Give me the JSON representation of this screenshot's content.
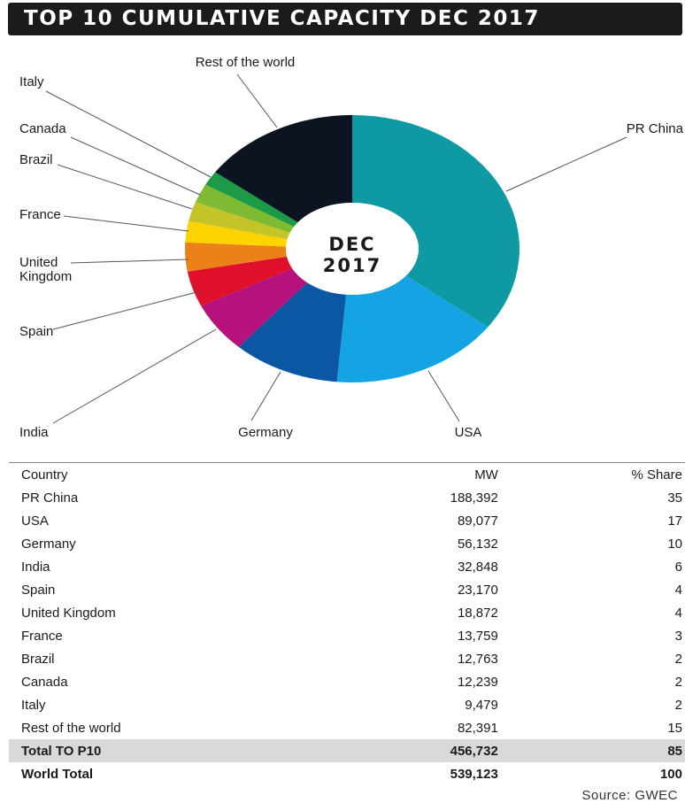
{
  "title": "TOP 10 CUMULATIVE CAPACITY DEC 2017",
  "center_label": [
    "DEC",
    "2017"
  ],
  "chart_data": {
    "type": "pie",
    "title": "TOP 10 CUMULATIVE CAPACITY DEC 2017",
    "unit": "MW",
    "slices": [
      {
        "label": "PR China",
        "value": 188392,
        "share": 35,
        "color": "#0f9aa3"
      },
      {
        "label": "USA",
        "value": 89077,
        "share": 17,
        "color": "#14a4e4"
      },
      {
        "label": "Germany",
        "value": 56132,
        "share": 10,
        "color": "#0b57a3"
      },
      {
        "label": "India",
        "value": 32848,
        "share": 6,
        "color": "#b5127e"
      },
      {
        "label": "Spain",
        "value": 23170,
        "share": 4,
        "color": "#e0102b"
      },
      {
        "label": "United Kingdom",
        "value": 18872,
        "share": 4,
        "color": "#ec8019"
      },
      {
        "label": "France",
        "value": 13759,
        "share": 3,
        "color": "#fdd400"
      },
      {
        "label": "Brazil",
        "value": 12763,
        "share": 2,
        "color": "#c3c427"
      },
      {
        "label": "Canada",
        "value": 12239,
        "share": 2,
        "color": "#7fbb32"
      },
      {
        "label": "Italy",
        "value": 9479,
        "share": 2,
        "color": "#1c9a45"
      },
      {
        "label": "Rest of the world",
        "value": 82391,
        "share": 15,
        "color": "#0b1420"
      }
    ]
  },
  "table": {
    "headers": [
      "Country",
      "MW",
      "% Share"
    ],
    "rows": [
      [
        "PR China",
        "188,392",
        "35"
      ],
      [
        "USA",
        "89,077",
        "17"
      ],
      [
        "Germany",
        "56,132",
        "10"
      ],
      [
        "India",
        "32,848",
        "6"
      ],
      [
        "Spain",
        "23,170",
        "4"
      ],
      [
        "United Kingdom",
        "18,872",
        "4"
      ],
      [
        "France",
        "13,759",
        "3"
      ],
      [
        "Brazil",
        "12,763",
        "2"
      ],
      [
        "Canada",
        "12,239",
        "2"
      ],
      [
        "Italy",
        "9,479",
        "2"
      ],
      [
        "Rest of the world",
        "82,391",
        "15"
      ]
    ],
    "total_row": [
      "Total TO P10",
      "456,732",
      "85"
    ],
    "world_row": [
      "World Total",
      "539,123",
      "100"
    ]
  },
  "source": "Source: GWEC"
}
